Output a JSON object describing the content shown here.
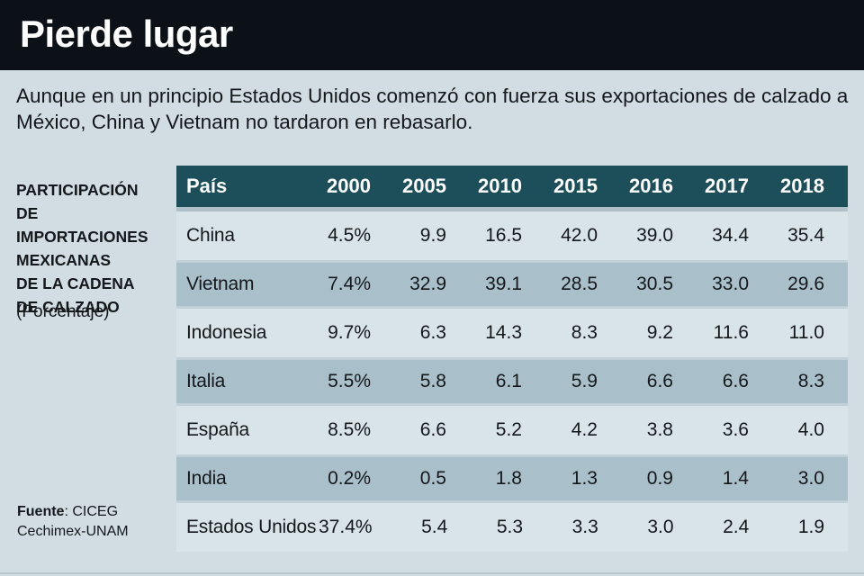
{
  "page": {
    "title": "Pierde lugar",
    "subtitle": "Aunque en un principio Estados Unidos comenzó con fuerza sus exportaciones de calzado a\nMéxico, China y Vietnam no tardaron en rebasarlo.",
    "side_label": "PARTICIPACIÓN\nDE IMPORTACIONES\nMEXICANAS\nDE LA CADENA\nDE CALZADO",
    "side_sublabel": "(Porcentaje)",
    "source_label": "Fuente",
    "source_value": ": CICEG",
    "source_line2": "Cechimex-UNAM"
  },
  "colors": {
    "page_bg": "#d1dde3",
    "topbar_bg": "#0b1116",
    "title_color": "#ffffff",
    "header_bg": "#1d4f5a",
    "row_light": "#d9e4e9",
    "row_dark": "#a9bfc9",
    "row_dark_edge": "#c2d1d8",
    "strip": "#b0c0c8",
    "ink": "#15181b"
  },
  "chart_data": {
    "type": "table",
    "title": "Pierde lugar",
    "subtitle": "Aunque en un principio Estados Unidos comenzó con fuerza sus exportaciones de calzado a México, China y Vietnam no tardaron en rebasarlo.",
    "unit_note": "PARTICIPACIÓN DE IMPORTACIONES MEXICANAS DE LA CADENA DE CALZADO (Porcentaje)",
    "columns": [
      "País",
      "2000",
      "2005",
      "2010",
      "2015",
      "2016",
      "2017",
      "2018"
    ],
    "rows": [
      {
        "country": "China",
        "values": [
          "4.5%",
          "9.9",
          "16.5",
          "42.0",
          "39.0",
          "34.4",
          "35.4"
        ]
      },
      {
        "country": "Vietnam",
        "values": [
          "7.4%",
          "32.9",
          "39.1",
          "28.5",
          "30.5",
          "33.0",
          "29.6"
        ]
      },
      {
        "country": "Indonesia",
        "values": [
          "9.7%",
          "6.3",
          "14.3",
          "8.3",
          "9.2",
          "11.6",
          "11.0"
        ]
      },
      {
        "country": "Italia",
        "values": [
          "5.5%",
          "5.8",
          "6.1",
          "5.9",
          "6.6",
          "6.6",
          "8.3"
        ]
      },
      {
        "country": "España",
        "values": [
          "8.5%",
          "6.6",
          "5.2",
          "4.2",
          "3.8",
          "3.6",
          "4.0"
        ]
      },
      {
        "country": "India",
        "values": [
          "0.2%",
          "0.5",
          "1.8",
          "1.3",
          "0.9",
          "1.4",
          "3.0"
        ]
      },
      {
        "country": "Estados Unidos",
        "values": [
          "37.4%",
          "5.4",
          "5.3",
          "3.3",
          "3.0",
          "2.4",
          "1.9"
        ]
      }
    ],
    "source": "Fuente: CICEG Cechimex-UNAM"
  }
}
